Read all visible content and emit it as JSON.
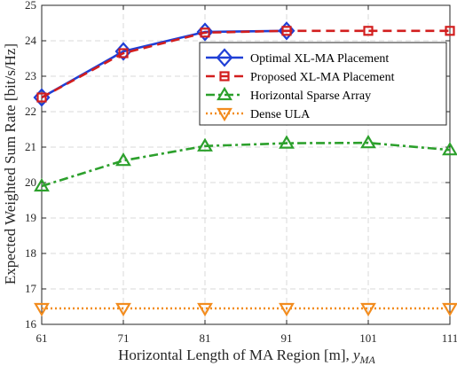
{
  "chart_data": {
    "type": "line",
    "title": "",
    "xlabel_prefix": "Horizontal Length of MA Region [m], ",
    "xlabel_symbol": "y",
    "xlabel_subscript": "MA",
    "ylabel": "Expected Weighted Sum Rate [bit/s/Hz]",
    "x": [
      61,
      71,
      81,
      91,
      101,
      111
    ],
    "xticks": [
      "61",
      "71",
      "81",
      "91",
      "101",
      "111"
    ],
    "yticks": [
      "16",
      "17",
      "18",
      "19",
      "20",
      "21",
      "22",
      "23",
      "24",
      "25"
    ],
    "xlim": [
      61,
      111
    ],
    "ylim": [
      16,
      25
    ],
    "grid": true,
    "legend_position": "top-right",
    "series": [
      {
        "name": "Optimal XL-MA Placement",
        "x": [
          61,
          71,
          81,
          91
        ],
        "values": [
          22.4,
          23.7,
          24.25,
          24.28
        ],
        "color": "#1f3fd6",
        "style": "solid",
        "marker": "diamond"
      },
      {
        "name": "Proposed XL-MA Placement",
        "x": [
          61,
          71,
          81,
          91,
          101,
          111
        ],
        "values": [
          22.4,
          23.65,
          24.23,
          24.28,
          24.28,
          24.28
        ],
        "color": "#d21e1e",
        "style": "dashed",
        "marker": "square"
      },
      {
        "name": "Horizontal Sparse Array",
        "x": [
          61,
          71,
          81,
          91,
          101,
          111
        ],
        "values": [
          19.9,
          20.62,
          21.03,
          21.11,
          21.12,
          20.92
        ],
        "color": "#2ca02c",
        "style": "dashdot",
        "marker": "triangle-up"
      },
      {
        "name": "Dense ULA",
        "x": [
          61,
          71,
          81,
          91,
          101,
          111
        ],
        "values": [
          16.45,
          16.45,
          16.45,
          16.45,
          16.45,
          16.45
        ],
        "color": "#f28c1e",
        "style": "dotted",
        "marker": "triangle-down"
      }
    ]
  }
}
